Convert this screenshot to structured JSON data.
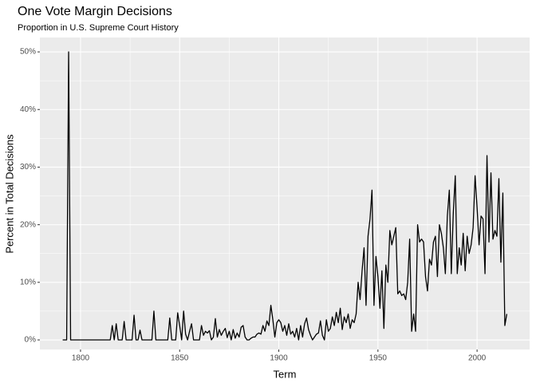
{
  "chart_data": {
    "type": "line",
    "title": "One Vote Margin Decisions",
    "subtitle": "Proportion in U.S. Supreme Court History",
    "x_label": "Term",
    "y_label": "Percent in Total Decisions",
    "xlim": [
      1779.5,
      2026.5
    ],
    "xticks": [
      1800,
      1850,
      1900,
      1950,
      2000
    ],
    "ylim": [
      -1.66,
      52.5
    ],
    "yticks": [
      {
        "value": 0,
        "label": "0%"
      },
      {
        "value": 10,
        "label": "10%"
      },
      {
        "value": 20,
        "label": "20%"
      },
      {
        "value": 30,
        "label": "30%"
      },
      {
        "value": 40,
        "label": "40%"
      },
      {
        "value": 50,
        "label": "50%"
      }
    ],
    "grid": true,
    "color": "#000000",
    "x": [
      1791,
      1792,
      1793,
      1794,
      1795,
      1796,
      1797,
      1798,
      1799,
      1800,
      1801,
      1802,
      1803,
      1804,
      1805,
      1806,
      1807,
      1808,
      1809,
      1810,
      1811,
      1812,
      1813,
      1814,
      1815,
      1816,
      1817,
      1818,
      1819,
      1820,
      1821,
      1822,
      1823,
      1824,
      1825,
      1826,
      1827,
      1828,
      1829,
      1830,
      1831,
      1832,
      1833,
      1834,
      1835,
      1836,
      1837,
      1838,
      1839,
      1840,
      1841,
      1842,
      1843,
      1844,
      1845,
      1846,
      1847,
      1848,
      1849,
      1850,
      1851,
      1852,
      1853,
      1854,
      1855,
      1856,
      1857,
      1858,
      1859,
      1860,
      1861,
      1862,
      1863,
      1864,
      1865,
      1866,
      1867,
      1868,
      1869,
      1870,
      1871,
      1872,
      1873,
      1874,
      1875,
      1876,
      1877,
      1878,
      1879,
      1880,
      1881,
      1882,
      1883,
      1884,
      1885,
      1886,
      1887,
      1888,
      1889,
      1890,
      1891,
      1892,
      1893,
      1894,
      1895,
      1896,
      1897,
      1898,
      1899,
      1900,
      1901,
      1902,
      1903,
      1904,
      1905,
      1906,
      1907,
      1908,
      1909,
      1910,
      1911,
      1912,
      1913,
      1914,
      1915,
      1916,
      1917,
      1918,
      1919,
      1920,
      1921,
      1922,
      1923,
      1924,
      1925,
      1926,
      1927,
      1928,
      1929,
      1930,
      1931,
      1932,
      1933,
      1934,
      1935,
      1936,
      1937,
      1938,
      1939,
      1940,
      1941,
      1942,
      1943,
      1944,
      1945,
      1946,
      1947,
      1948,
      1949,
      1950,
      1951,
      1952,
      1953,
      1954,
      1955,
      1956,
      1957,
      1958,
      1959,
      1960,
      1961,
      1962,
      1963,
      1964,
      1965,
      1966,
      1967,
      1968,
      1969,
      1970,
      1971,
      1972,
      1973,
      1974,
      1975,
      1976,
      1977,
      1978,
      1979,
      1980,
      1981,
      1982,
      1983,
      1984,
      1985,
      1986,
      1987,
      1988,
      1989,
      1990,
      1991,
      1992,
      1993,
      1994,
      1995,
      1996,
      1997,
      1998,
      1999,
      2000,
      2001,
      2002,
      2003,
      2004,
      2005,
      2006,
      2007,
      2008,
      2009,
      2010,
      2011,
      2012,
      2013,
      2014,
      2015
    ],
    "values": [
      0,
      0,
      0,
      50,
      0,
      0,
      0,
      0,
      0,
      0,
      0,
      0,
      0,
      0,
      0,
      0,
      0,
      0,
      0,
      0,
      0,
      0,
      0,
      0,
      0,
      2.5,
      0,
      2.8,
      0,
      0,
      0,
      3.2,
      0,
      0,
      0,
      0,
      4.3,
      0,
      0,
      1.7,
      0,
      0,
      0,
      0,
      0,
      0,
      5,
      0,
      0,
      0,
      0,
      0,
      0,
      0,
      3.8,
      0,
      0,
      0,
      4.7,
      2.5,
      0,
      5,
      1,
      0,
      1.5,
      2.8,
      0,
      0,
      0,
      0,
      2.5,
      0.8,
      1.5,
      1.2,
      1.6,
      0,
      0.5,
      3.7,
      0.5,
      1.8,
      0.8,
      1.5,
      2,
      0.4,
      1.5,
      0,
      1.8,
      0.3,
      1.2,
      0.5,
      2.2,
      2.5,
      0.5,
      0,
      0,
      0.3,
      0.5,
      0.5,
      1,
      1.2,
      1,
      2.5,
      1.5,
      3.3,
      2.5,
      6,
      3.5,
      0.5,
      3,
      3.5,
      3,
      1.5,
      2.5,
      0.8,
      2.8,
      1,
      1.5,
      0.5,
      2,
      0,
      2.5,
      0.5,
      2.8,
      3.8,
      1.8,
      0.8,
      0,
      0.5,
      1,
      1.2,
      3.3,
      0.8,
      0,
      3.5,
      1.5,
      2,
      4,
      2.5,
      4.8,
      3,
      5.5,
      1.8,
      4,
      3,
      4.5,
      2,
      3.5,
      3,
      4.5,
      10,
      7,
      12,
      16,
      6,
      18,
      21,
      26,
      6,
      14.5,
      11,
      5.5,
      12,
      2,
      13,
      10,
      19,
      16.5,
      18,
      19.5,
      8,
      8.5,
      7.7,
      8,
      7,
      10,
      17.5,
      1.5,
      4.5,
      1.5,
      20,
      17,
      17.5,
      17,
      11,
      8.5,
      14,
      13,
      17,
      18,
      11,
      20,
      18.5,
      16,
      11.5,
      21.5,
      26,
      11.5,
      22,
      28.5,
      11.5,
      16,
      13,
      18.5,
      12,
      18,
      15,
      16.5,
      19.5,
      28.5,
      23,
      16.5,
      21.5,
      21,
      11.5,
      32,
      17,
      29,
      17.5,
      19,
      18,
      28,
      13.5,
      25.5,
      2.5,
      4.5
    ]
  }
}
